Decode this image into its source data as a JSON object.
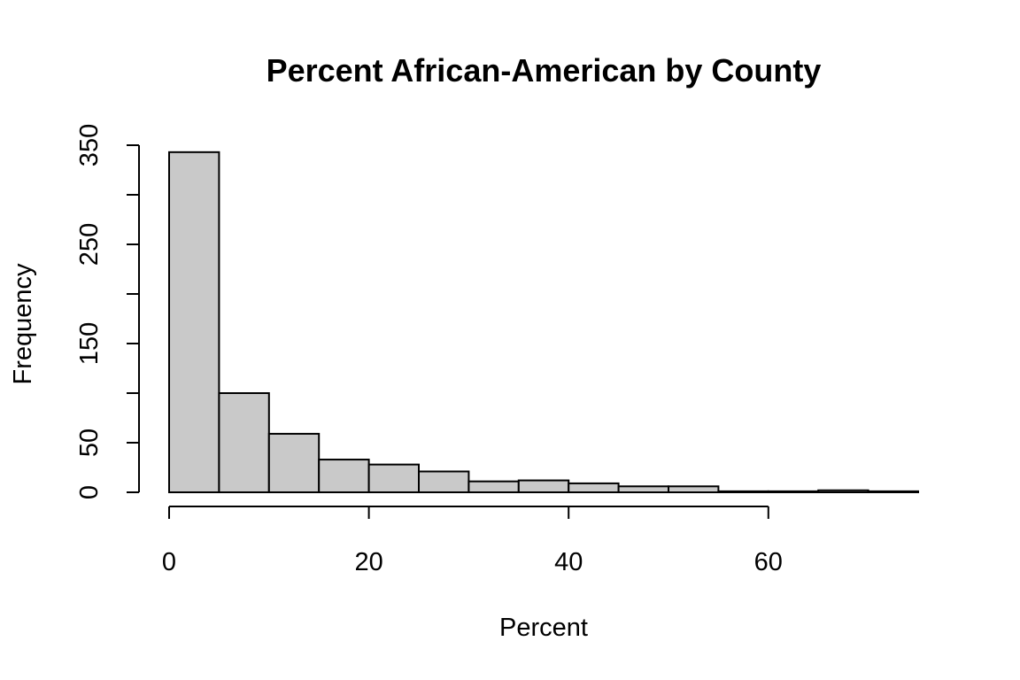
{
  "chart_data": {
    "type": "histogram",
    "title": "Percent African-American by County",
    "xlabel": "Percent",
    "ylabel": "Frequency",
    "bins": [
      {
        "from": 0,
        "to": 5,
        "count": 343
      },
      {
        "from": 5,
        "to": 10,
        "count": 100
      },
      {
        "from": 10,
        "to": 15,
        "count": 59
      },
      {
        "from": 15,
        "to": 20,
        "count": 33
      },
      {
        "from": 20,
        "to": 25,
        "count": 28
      },
      {
        "from": 25,
        "to": 30,
        "count": 21
      },
      {
        "from": 30,
        "to": 35,
        "count": 11
      },
      {
        "from": 35,
        "to": 40,
        "count": 12
      },
      {
        "from": 40,
        "to": 45,
        "count": 9
      },
      {
        "from": 45,
        "to": 50,
        "count": 6
      },
      {
        "from": 50,
        "to": 55,
        "count": 6
      },
      {
        "from": 55,
        "to": 60,
        "count": 1
      },
      {
        "from": 60,
        "to": 65,
        "count": 1
      },
      {
        "from": 65,
        "to": 70,
        "count": 2
      },
      {
        "from": 70,
        "to": 75,
        "count": 1
      }
    ],
    "xlim": [
      0,
      75
    ],
    "ylim": [
      0,
      350
    ],
    "x_ticks": [
      0,
      20,
      40,
      60
    ],
    "y_ticks": [
      0,
      50,
      100,
      150,
      200,
      250,
      300,
      350
    ],
    "y_tick_labels": [
      "0",
      "50",
      "",
      "150",
      "",
      "250",
      "",
      "350"
    ],
    "grid": false,
    "bar_color": "#c9c9c9",
    "edge_color": "#000000"
  }
}
